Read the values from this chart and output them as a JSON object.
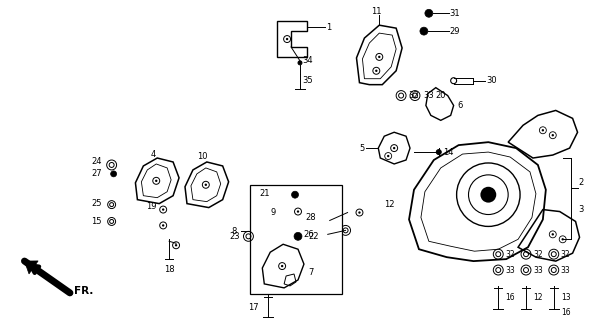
{
  "bg_color": "#ffffff",
  "figsize": [
    5.97,
    3.2
  ],
  "dpi": 100
}
